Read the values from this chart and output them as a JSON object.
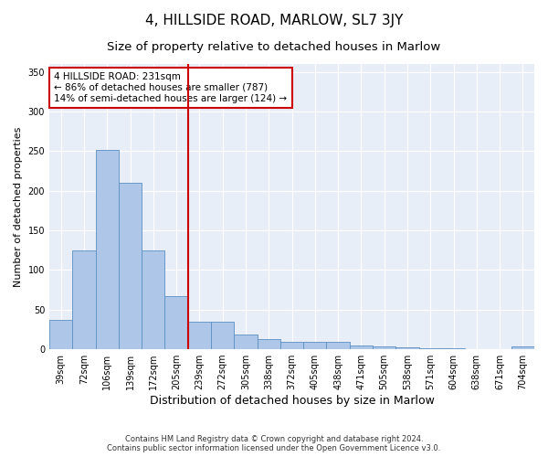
{
  "title": "4, HILLSIDE ROAD, MARLOW, SL7 3JY",
  "subtitle": "Size of property relative to detached houses in Marlow",
  "xlabel": "Distribution of detached houses by size in Marlow",
  "ylabel": "Number of detached properties",
  "bar_color": "#aec6e8",
  "bar_edge_color": "#5a8fc2",
  "background_color": "#e8eef7",
  "categories": [
    "39sqm",
    "72sqm",
    "106sqm",
    "139sqm",
    "172sqm",
    "205sqm",
    "239sqm",
    "272sqm",
    "305sqm",
    "338sqm",
    "372sqm",
    "405sqm",
    "438sqm",
    "471sqm",
    "505sqm",
    "538sqm",
    "571sqm",
    "604sqm",
    "638sqm",
    "671sqm",
    "704sqm"
  ],
  "values": [
    37,
    125,
    252,
    210,
    125,
    67,
    35,
    35,
    19,
    13,
    9,
    9,
    9,
    5,
    3,
    2,
    1,
    1,
    0,
    0,
    4
  ],
  "vline_index": 6,
  "vline_color": "#cc0000",
  "annotation_text": "4 HILLSIDE ROAD: 231sqm\n← 86% of detached houses are smaller (787)\n14% of semi-detached houses are larger (124) →",
  "annotation_box_color": "#ffffff",
  "annotation_box_edge": "#cc0000",
  "ylim": [
    0,
    360
  ],
  "yticks": [
    0,
    50,
    100,
    150,
    200,
    250,
    300,
    350
  ],
  "footer": "Contains HM Land Registry data © Crown copyright and database right 2024.\nContains public sector information licensed under the Open Government Licence v3.0.",
  "title_fontsize": 11,
  "subtitle_fontsize": 9.5,
  "xlabel_fontsize": 9,
  "ylabel_fontsize": 8,
  "tick_fontsize": 7,
  "annotation_fontsize": 7.5,
  "footer_fontsize": 6
}
